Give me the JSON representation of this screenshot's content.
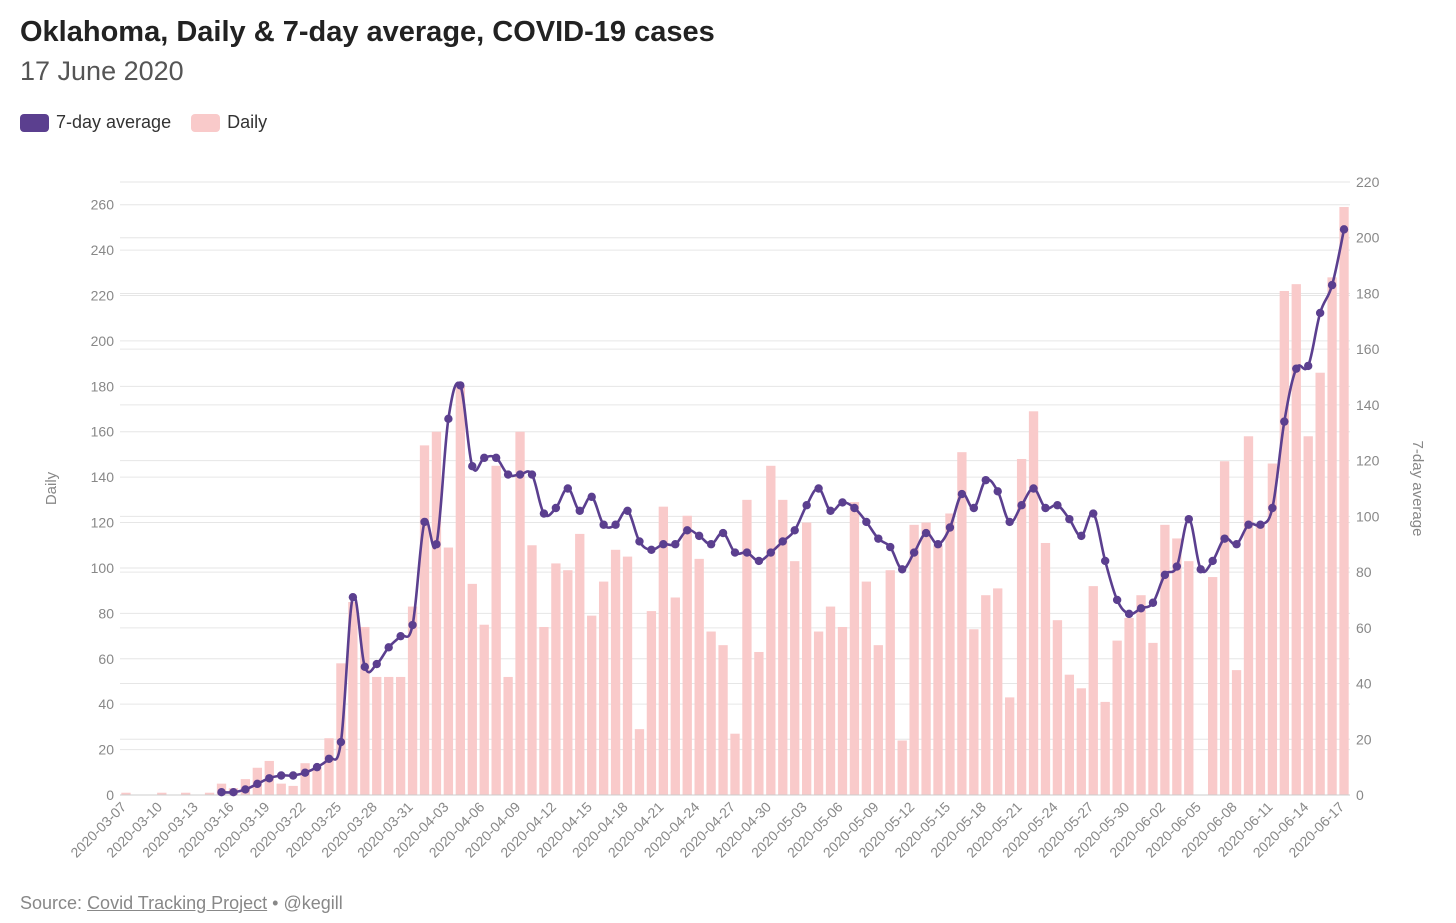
{
  "header": {
    "title": "Oklahoma, Daily & 7-day average, COVID-19 cases",
    "subtitle": "17 June 2020"
  },
  "legend": {
    "line_label": "7-day average",
    "bar_label": "Daily"
  },
  "footer": {
    "source_prefix": "Source:",
    "source_link": "Covid Tracking Project",
    "separator": "•",
    "credit": "@kegill"
  },
  "colors": {
    "line": "#5b3f8f",
    "bar": "#f9caca",
    "grid": "#e6e6e6",
    "axis_text": "#888888"
  },
  "chart_data": {
    "type": "bar+line",
    "title": "Oklahoma, Daily & 7-day average, COVID-19 cases",
    "subtitle": "17 June 2020",
    "ylabel_left": "Daily",
    "ylabel_right": "7-day average",
    "ylim_left": [
      0,
      270
    ],
    "ylim_right": [
      0,
      220
    ],
    "yticks_left": [
      0,
      20,
      40,
      60,
      80,
      100,
      120,
      140,
      160,
      180,
      200,
      220,
      240,
      260
    ],
    "yticks_right": [
      0,
      20,
      40,
      60,
      80,
      100,
      120,
      140,
      160,
      180,
      200,
      220
    ],
    "grid": true,
    "legend_position": "top-left",
    "x_start": "2020-03-07",
    "x_end": "2020-06-17",
    "xtick_labels": [
      "2020-03-07",
      "2020-03-10",
      "2020-03-13",
      "2020-03-16",
      "2020-03-19",
      "2020-03-22",
      "2020-03-25",
      "2020-03-28",
      "2020-03-31",
      "2020-04-03",
      "2020-04-06",
      "2020-04-09",
      "2020-04-12",
      "2020-04-15",
      "2020-04-18",
      "2020-04-21",
      "2020-04-24",
      "2020-04-27",
      "2020-04-30",
      "2020-05-03",
      "2020-05-06",
      "2020-05-09",
      "2020-05-12",
      "2020-05-15",
      "2020-05-18",
      "2020-05-21",
      "2020-05-24",
      "2020-05-27",
      "2020-05-30",
      "2020-06-02",
      "2020-06-05",
      "2020-06-08",
      "2020-06-11",
      "2020-06-14",
      "2020-06-17"
    ],
    "series": [
      {
        "name": "Daily",
        "type": "bar",
        "axis": "left",
        "values": [
          1,
          0,
          0,
          1,
          0,
          1,
          0,
          1,
          5,
          3,
          7,
          12,
          15,
          5,
          4,
          14,
          12,
          25,
          58,
          85,
          74,
          52,
          52,
          52,
          83,
          154,
          160,
          109,
          180,
          93,
          75,
          145,
          52,
          160,
          110,
          74,
          102,
          99,
          115,
          79,
          94,
          108,
          105,
          29,
          81,
          127,
          87,
          123,
          104,
          72,
          66,
          27,
          130,
          63,
          145,
          130,
          103,
          120,
          72,
          83,
          74,
          129,
          94,
          66,
          99,
          24,
          119,
          120,
          110,
          124,
          151,
          73,
          88,
          91,
          43,
          148,
          169,
          111,
          77,
          53,
          47,
          92,
          41,
          68,
          78,
          88,
          67,
          119,
          113,
          103,
          0,
          96,
          147,
          55,
          158,
          119,
          146,
          222,
          225,
          158,
          186,
          228,
          259
        ]
      },
      {
        "name": "7-day average",
        "type": "line",
        "axis": "right",
        "values": [
          null,
          null,
          null,
          null,
          null,
          null,
          null,
          null,
          1,
          1,
          2,
          4,
          6,
          7,
          7,
          8,
          10,
          13,
          19,
          71,
          46,
          47,
          53,
          57,
          61,
          98,
          90,
          135,
          147,
          118,
          121,
          121,
          115,
          115,
          115,
          101,
          103,
          110,
          102,
          107,
          97,
          97,
          102,
          91,
          88,
          90,
          90,
          95,
          93,
          90,
          94,
          87,
          87,
          84,
          87,
          91,
          95,
          104,
          110,
          102,
          105,
          103,
          98,
          92,
          89,
          81,
          87,
          94,
          90,
          96,
          108,
          103,
          113,
          109,
          98,
          104,
          110,
          103,
          104,
          99,
          93,
          101,
          84,
          70,
          65,
          67,
          69,
          79,
          82,
          99,
          81,
          84,
          92,
          90,
          97,
          97,
          103,
          134,
          153,
          154,
          173,
          183,
          203
        ]
      }
    ]
  }
}
